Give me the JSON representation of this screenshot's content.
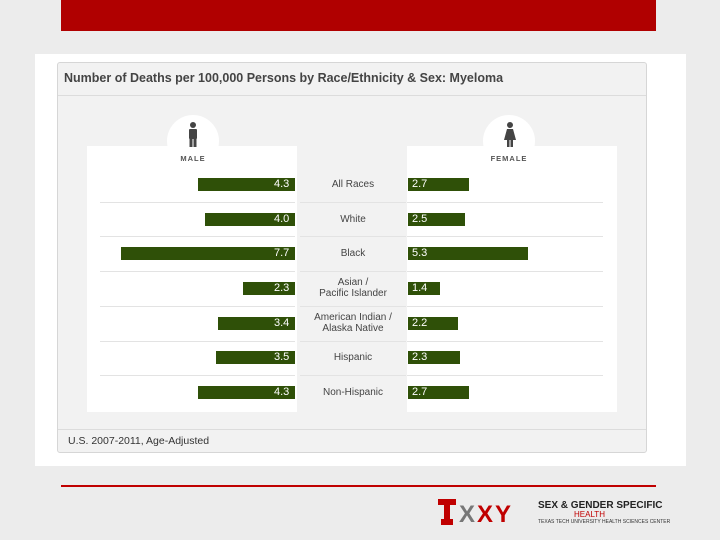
{
  "title": "Number of Deaths per 100,000 Persons by Race/Ethnicity & Sex: Myeloma",
  "footnote": "U.S. 2007-2011, Age-Adjusted",
  "male_label": "MALE",
  "female_label": "FEMALE",
  "colors": {
    "bar": "#2f5008",
    "accent_red": "#b00000"
  },
  "chart_data": {
    "type": "bar",
    "orientation": "horizontal-butterfly",
    "title": "Number of Deaths per 100,000 Persons by Race/Ethnicity & Sex: Myeloma",
    "categories": [
      "All Races",
      "White",
      "Black",
      "Asian / Pacific Islander",
      "American Indian / Alaska Native",
      "Hispanic",
      "Non-Hispanic"
    ],
    "series": [
      {
        "name": "MALE",
        "values": [
          4.3,
          4.0,
          7.7,
          2.3,
          3.4,
          3.5,
          4.3
        ]
      },
      {
        "name": "FEMALE",
        "values": [
          2.7,
          2.5,
          5.3,
          1.4,
          2.2,
          2.3,
          2.7
        ]
      }
    ],
    "value_labels": {
      "male": [
        "4.3",
        "4.0",
        "7.7",
        "2.3",
        "3.4",
        "3.5",
        "4.3"
      ],
      "female": [
        "2.7",
        "2.5",
        "5.3",
        "1.4",
        "2.2",
        "2.3",
        "2.7"
      ]
    },
    "category_label_lines": [
      [
        "All Races"
      ],
      [
        "White"
      ],
      [
        "Black"
      ],
      [
        "Asian /",
        "Pacific Islander"
      ],
      [
        "American Indian /",
        "Alaska Native"
      ],
      [
        "Hispanic"
      ],
      [
        "Non-Hispanic"
      ]
    ],
    "note": "U.S. 2007-2011, Age-Adjusted"
  },
  "logo": {
    "title": "SEX & GENDER SPECIFIC",
    "subtitle": "HEALTH",
    "tagline": "TEXAS TECH UNIVERSITY HEALTH SCIENCES CENTER"
  }
}
